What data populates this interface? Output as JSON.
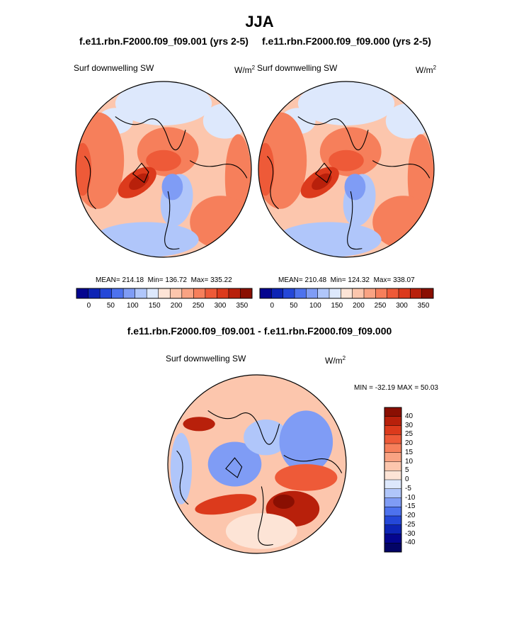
{
  "title": "JJA",
  "panels": [
    {
      "case_title": "f.e11.rbn.F2000.f09_f09.001 (yrs 2-5)",
      "variable": "Surf downwelling SW",
      "units": "W/m",
      "units_exp": "2",
      "stats": {
        "mean_label": "MEAN=",
        "mean": "214.18",
        "min_label": "Min=",
        "min": "136.72",
        "max_label": "Max=",
        "max": "335.22"
      }
    },
    {
      "case_title": "f.e11.rbn.F2000.f09_f09.000 (yrs 2-5)",
      "variable": "Surf downwelling SW",
      "units": "W/m",
      "units_exp": "2",
      "stats": {
        "mean_label": "MEAN=",
        "mean": "210.48",
        "min_label": "Min=",
        "min": "124.32",
        "max_label": "Max=",
        "max": "338.07"
      }
    }
  ],
  "diff_panel": {
    "title": "f.e11.rbn.F2000.f09_f09.001 - f.e11.rbn.F2000.f09_f09.000",
    "variable": "Surf downwelling SW",
    "units": "W/m",
    "units_exp": "2",
    "min_label": "MIN =",
    "min": "-32.19",
    "max_label": "MAX =",
    "max": "50.03"
  },
  "chart_data": [
    {
      "type": "heatmap",
      "projection": "north-polar-stereographic",
      "title": "f.e11.rbn.F2000.f09_f09.001 (yrs 2-5)",
      "field": "Surf downwelling SW",
      "units": "W/m2",
      "mean": 214.18,
      "min": 136.72,
      "max": 335.22,
      "colorbar_levels": [
        0,
        25,
        50,
        75,
        100,
        125,
        150,
        175,
        200,
        225,
        250,
        275,
        300,
        325,
        350
      ],
      "colorbar_tick_labels": [
        "0",
        "50",
        "100",
        "150",
        "200",
        "250",
        "300",
        "350"
      ],
      "colorbar_colors": [
        "#04058f",
        "#0d24b5",
        "#2447d8",
        "#4d72ee",
        "#7f9cf5",
        "#b0c6fa",
        "#dde8fc",
        "#fde4d6",
        "#fcc6ad",
        "#f9a383",
        "#f67f5b",
        "#ee5a38",
        "#dc3a1c",
        "#b8200b",
        "#8a0f02"
      ]
    },
    {
      "type": "heatmap",
      "projection": "north-polar-stereographic",
      "title": "f.e11.rbn.F2000.f09_f09.000 (yrs 2-5)",
      "field": "Surf downwelling SW",
      "units": "W/m2",
      "mean": 210.48,
      "min": 124.32,
      "max": 338.07,
      "colorbar_levels": [
        0,
        25,
        50,
        75,
        100,
        125,
        150,
        175,
        200,
        225,
        250,
        275,
        300,
        325,
        350
      ],
      "colorbar_tick_labels": [
        "0",
        "50",
        "100",
        "150",
        "200",
        "250",
        "300",
        "350"
      ],
      "colorbar_colors": [
        "#04058f",
        "#0d24b5",
        "#2447d8",
        "#4d72ee",
        "#7f9cf5",
        "#b0c6fa",
        "#dde8fc",
        "#fde4d6",
        "#fcc6ad",
        "#f9a383",
        "#f67f5b",
        "#ee5a38",
        "#dc3a1c",
        "#b8200b",
        "#8a0f02"
      ]
    },
    {
      "type": "heatmap",
      "projection": "north-polar-stereographic",
      "title": "f.e11.rbn.F2000.f09_f09.001 - f.e11.rbn.F2000.f09_f09.000",
      "field": "Surf downwelling SW",
      "units": "W/m2",
      "min": -32.19,
      "max": 50.03,
      "colorbar_tick_labels": [
        "40",
        "30",
        "25",
        "20",
        "15",
        "10",
        "5",
        "0",
        "-5",
        "-10",
        "-15",
        "-20",
        "-25",
        "-30",
        "-40"
      ],
      "colorbar_colors": [
        "#8a0f02",
        "#b8200b",
        "#dc3a1c",
        "#ee5a38",
        "#f67f5b",
        "#f9a383",
        "#fcc6ad",
        "#fde4d6",
        "#dde8fc",
        "#b0c6fa",
        "#7f9cf5",
        "#4d72ee",
        "#2447d8",
        "#0d24b5",
        "#04058f",
        "#030466"
      ]
    }
  ]
}
